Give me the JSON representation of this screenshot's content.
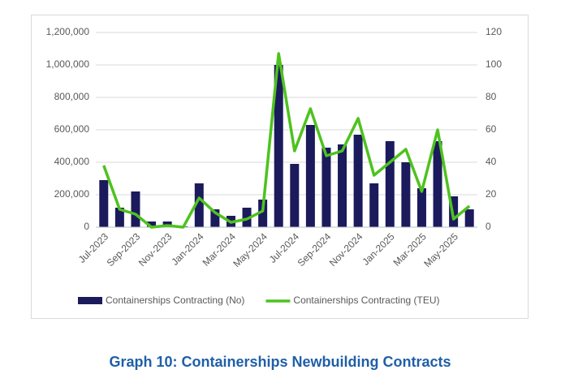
{
  "chart_data": {
    "type": "bar-line",
    "categories": [
      "Jul-2023",
      null,
      "Sep-2023",
      null,
      "Nov-2023",
      null,
      "Jan-2024",
      null,
      "Mar-2024",
      null,
      "May-2024",
      null,
      "Jul-2024",
      null,
      "Sep-2024",
      null,
      "Nov-2024",
      null,
      "Jan-2025",
      null,
      "Mar-2025",
      null,
      "May-2025",
      null
    ],
    "series": [
      {
        "name": "Containerships Contracting (No)",
        "type": "bar",
        "color": "#1b1a5c",
        "values": [
          290000,
          120000,
          220000,
          35000,
          35000,
          5000,
          270000,
          110000,
          70000,
          120000,
          170000,
          1000000,
          390000,
          630000,
          490000,
          510000,
          570000,
          270000,
          530000,
          400000,
          240000,
          530000,
          190000,
          110000
        ]
      },
      {
        "name": "Containerships Contracting (TEU)",
        "type": "line",
        "axis": "y2",
        "color": "#4ec21e",
        "values": [
          38,
          11,
          8,
          0,
          1,
          0,
          18,
          9,
          3,
          5,
          10,
          107,
          47,
          73,
          44,
          47,
          67,
          32,
          40,
          48,
          22,
          60,
          5,
          13
        ]
      }
    ],
    "ylim": [
      0,
      1200000
    ],
    "yticks": [
      0,
      {
        "value": 200000,
        "label": "200,000"
      },
      {
        "value": 400000,
        "label": "400,000"
      },
      {
        "value": 600000,
        "label": "600,000"
      },
      {
        "value": 800000,
        "label": "800,000"
      },
      {
        "value": 1000000,
        "label": "1,000,000"
      },
      {
        "value": 1200000,
        "label": "1,200,000"
      }
    ],
    "y2lim": [
      0,
      120
    ],
    "y2ticks": [
      0,
      20,
      40,
      60,
      80,
      100,
      120
    ],
    "grid": true,
    "legend": "bottom"
  },
  "caption": "Graph 10: Containerships Newbuilding Contracts"
}
